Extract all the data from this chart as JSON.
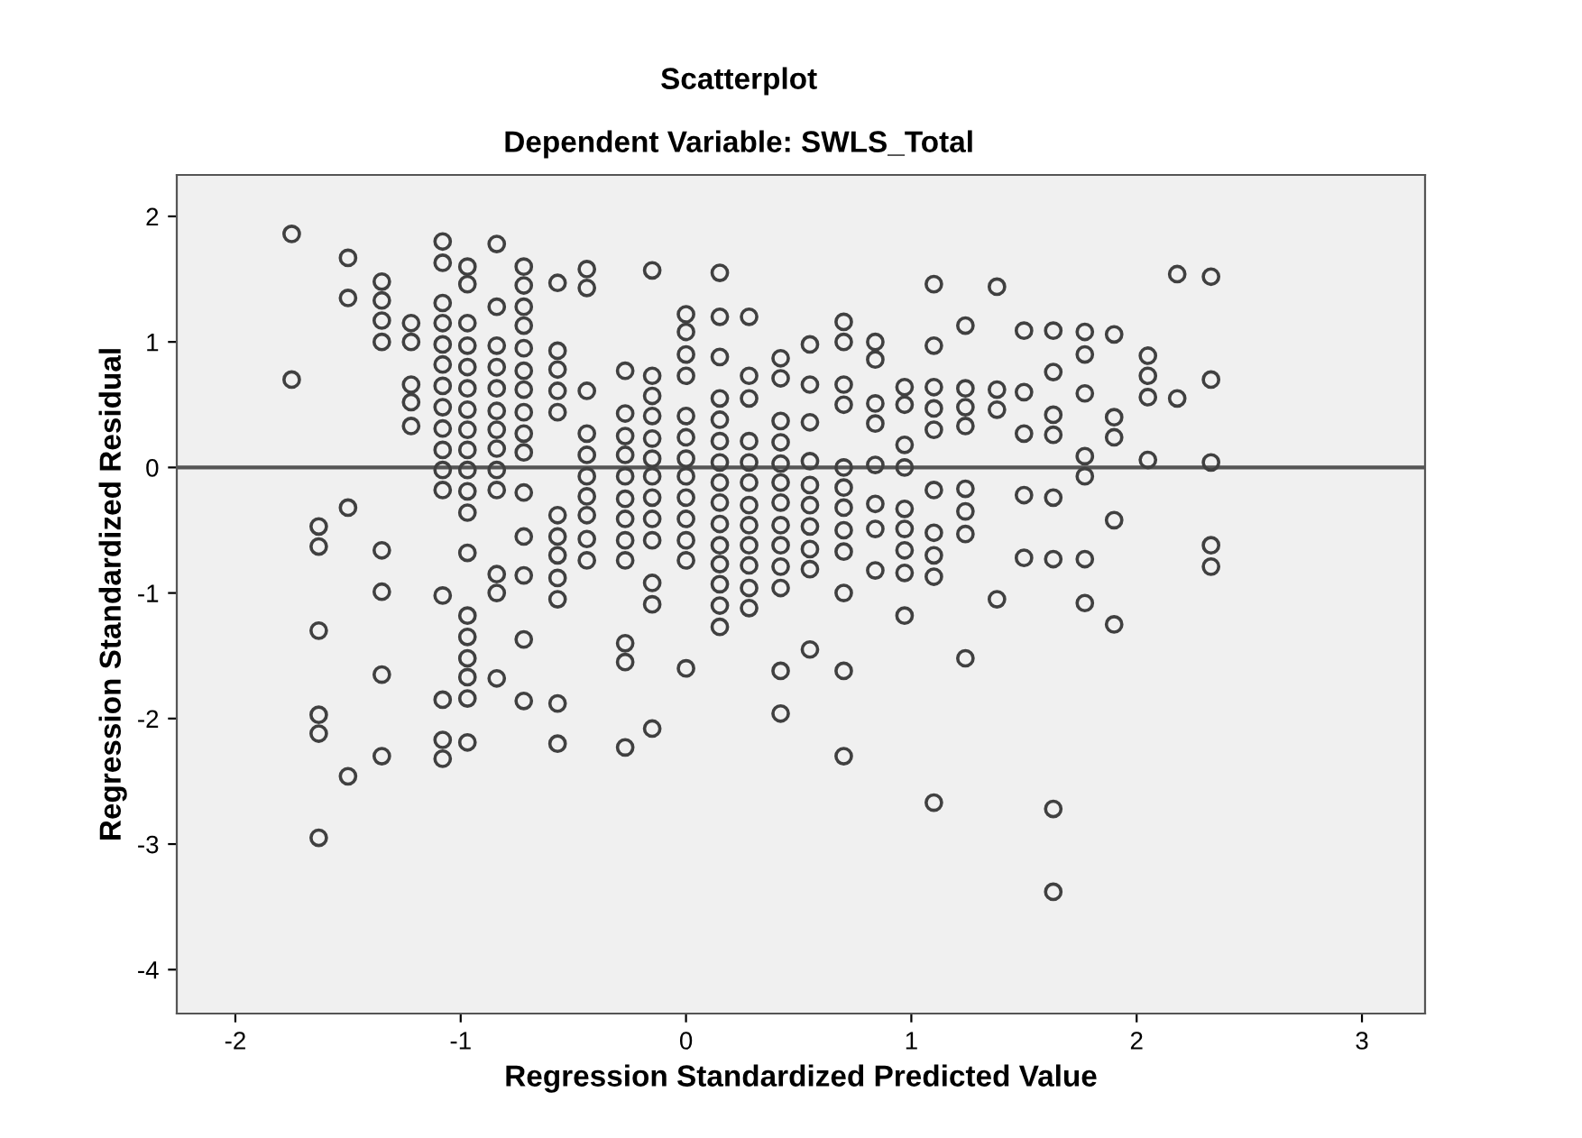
{
  "chart_data": {
    "type": "scatter",
    "title": "Scatterplot",
    "subtitle": "Dependent Variable: SWLS_Total",
    "xlabel": "Regression Standardized Predicted Value",
    "ylabel": "Regression Standardized Residual",
    "marker": "circle",
    "grid": false,
    "xlim": [
      -2.26,
      3.28
    ],
    "ylim": [
      -4.35,
      2.33
    ],
    "xticks": [
      -2,
      -1,
      0,
      1,
      2,
      3
    ],
    "yticks": [
      -4,
      -3,
      -2,
      -1,
      0,
      1,
      2
    ],
    "ref_lines": [
      {
        "axis": "y",
        "value": 0,
        "label": null,
        "color": "#555555"
      }
    ],
    "series": [
      {
        "color": "#404040",
        "x": [
          -1.75,
          -1.75,
          -1.63,
          -1.63,
          -1.63,
          -1.63,
          -1.63,
          -1.63,
          -1.5,
          -1.5,
          -1.5,
          -1.5,
          -1.35,
          -1.35,
          -1.35,
          -1.35,
          -1.35,
          -1.35,
          -1.35,
          -1.35,
          -1.22,
          -1.22,
          -1.22,
          -1.22,
          -1.22,
          -1.08,
          -1.08,
          -1.08,
          -1.08,
          -1.08,
          -1.08,
          -1.08,
          -1.08,
          -1.08,
          -1.08,
          -1.08,
          -1.08,
          -1.08,
          -1.08,
          -1.08,
          -1.08,
          -0.97,
          -0.97,
          -0.97,
          -0.97,
          -0.97,
          -0.97,
          -0.97,
          -0.97,
          -0.97,
          -0.97,
          -0.97,
          -0.97,
          -0.97,
          -0.97,
          -0.97,
          -0.97,
          -0.97,
          -0.97,
          -0.97,
          -0.84,
          -0.84,
          -0.84,
          -0.84,
          -0.84,
          -0.84,
          -0.84,
          -0.84,
          -0.84,
          -0.84,
          -0.84,
          -0.84,
          -0.84,
          -0.72,
          -0.72,
          -0.72,
          -0.72,
          -0.72,
          -0.72,
          -0.72,
          -0.72,
          -0.72,
          -0.72,
          -0.72,
          -0.72,
          -0.72,
          -0.72,
          -0.72,
          -0.57,
          -0.57,
          -0.57,
          -0.57,
          -0.57,
          -0.57,
          -0.57,
          -0.57,
          -0.57,
          -0.57,
          -0.57,
          -0.57,
          -0.44,
          -0.44,
          -0.44,
          -0.44,
          -0.44,
          -0.44,
          -0.44,
          -0.44,
          -0.44,
          -0.44,
          -0.27,
          -0.27,
          -0.27,
          -0.27,
          -0.27,
          -0.27,
          -0.27,
          -0.27,
          -0.27,
          -0.27,
          -0.27,
          -0.27,
          -0.15,
          -0.15,
          -0.15,
          -0.15,
          -0.15,
          -0.15,
          -0.15,
          -0.15,
          -0.15,
          -0.15,
          -0.15,
          -0.15,
          -0.15,
          0,
          0,
          0,
          0,
          0,
          0,
          0,
          0,
          0,
          0,
          0,
          0,
          0,
          0.15,
          0.15,
          0.15,
          0.15,
          0.15,
          0.15,
          0.15,
          0.15,
          0.15,
          0.15,
          0.15,
          0.15,
          0.15,
          0.15,
          0.15,
          0.28,
          0.28,
          0.28,
          0.28,
          0.28,
          0.28,
          0.28,
          0.28,
          0.28,
          0.28,
          0.28,
          0.28,
          0.42,
          0.42,
          0.42,
          0.42,
          0.42,
          0.42,
          0.42,
          0.42,
          0.42,
          0.42,
          0.42,
          0.42,
          0.42,
          0.55,
          0.55,
          0.55,
          0.55,
          0.55,
          0.55,
          0.55,
          0.55,
          0.55,
          0.55,
          0.7,
          0.7,
          0.7,
          0.7,
          0.7,
          0.7,
          0.7,
          0.7,
          0.7,
          0.7,
          0.7,
          0.7,
          0.84,
          0.84,
          0.84,
          0.84,
          0.84,
          0.84,
          0.84,
          0.84,
          0.97,
          0.97,
          0.97,
          0.97,
          0.97,
          0.97,
          0.97,
          0.97,
          0.97,
          1.1,
          1.1,
          1.1,
          1.1,
          1.1,
          1.1,
          1.1,
          1.1,
          1.1,
          1.1,
          1.24,
          1.24,
          1.24,
          1.24,
          1.24,
          1.24,
          1.24,
          1.24,
          1.38,
          1.38,
          1.38,
          1.38,
          1.5,
          1.5,
          1.5,
          1.5,
          1.5,
          1.63,
          1.63,
          1.63,
          1.63,
          1.63,
          1.63,
          1.63,
          1.63,
          1.77,
          1.77,
          1.77,
          1.77,
          1.77,
          1.77,
          1.77,
          1.9,
          1.9,
          1.9,
          1.9,
          1.9,
          2.05,
          2.05,
          2.05,
          2.05,
          2.18,
          2.18,
          2.33,
          2.33,
          2.33,
          2.33,
          2.33
        ],
        "values": [
          1.86,
          0.7,
          -0.47,
          -0.63,
          -1.3,
          -1.97,
          -2.12,
          -2.95,
          1.67,
          1.35,
          -0.32,
          -2.46,
          1.48,
          1.33,
          1.17,
          1.0,
          -0.66,
          -0.99,
          -1.65,
          -2.3,
          1.15,
          1.0,
          0.66,
          0.52,
          0.33,
          1.8,
          1.63,
          1.31,
          1.15,
          0.98,
          0.82,
          0.65,
          0.48,
          0.31,
          0.14,
          -0.02,
          -0.18,
          -1.02,
          -1.85,
          -2.17,
          -2.32,
          1.6,
          1.46,
          1.15,
          0.97,
          0.8,
          0.63,
          0.46,
          0.3,
          0.14,
          -0.02,
          -0.19,
          -0.36,
          -0.68,
          -1.18,
          -1.35,
          -1.52,
          -1.67,
          -1.84,
          -2.19,
          1.78,
          1.28,
          0.97,
          0.8,
          0.63,
          0.45,
          0.3,
          0.15,
          -0.02,
          -0.18,
          -0.85,
          -1.0,
          -1.68,
          1.6,
          1.45,
          1.28,
          1.13,
          0.95,
          0.77,
          0.62,
          0.44,
          0.27,
          0.12,
          -0.2,
          -0.55,
          -0.86,
          -1.37,
          -1.86,
          1.47,
          0.93,
          0.78,
          0.61,
          0.44,
          -0.38,
          -0.55,
          -0.7,
          -0.88,
          -1.05,
          -1.88,
          -2.2,
          1.58,
          1.43,
          0.61,
          0.27,
          0.1,
          -0.07,
          -0.23,
          -0.38,
          -0.57,
          -0.74,
          0.77,
          0.43,
          0.25,
          0.1,
          -0.07,
          -0.25,
          -0.41,
          -0.58,
          -0.74,
          -1.4,
          -1.55,
          -2.23,
          1.57,
          0.73,
          0.57,
          0.41,
          0.23,
          0.07,
          -0.07,
          -0.24,
          -0.41,
          -0.58,
          -0.92,
          -1.09,
          -2.08,
          1.22,
          1.08,
          0.9,
          0.73,
          0.41,
          0.24,
          0.07,
          -0.07,
          -0.24,
          -0.41,
          -0.58,
          -0.74,
          -1.6,
          1.55,
          1.2,
          0.88,
          0.55,
          0.38,
          0.21,
          0.04,
          -0.12,
          -0.28,
          -0.45,
          -0.62,
          -0.77,
          -0.93,
          -1.1,
          -1.27,
          1.2,
          0.73,
          0.55,
          0.21,
          0.04,
          -0.12,
          -0.3,
          -0.46,
          -0.62,
          -0.78,
          -0.96,
          -1.12,
          0.87,
          0.71,
          0.37,
          0.2,
          0.03,
          -0.12,
          -0.28,
          -0.46,
          -0.62,
          -0.79,
          -0.96,
          -1.62,
          -1.96,
          0.98,
          0.66,
          0.36,
          0.05,
          -0.14,
          -0.3,
          -0.47,
          -0.65,
          -0.81,
          -1.45,
          1.16,
          1.0,
          0.66,
          0.5,
          0.0,
          -0.16,
          -0.32,
          -0.5,
          -0.67,
          -1.0,
          -1.62,
          -2.3,
          1.0,
          0.86,
          0.51,
          0.35,
          0.02,
          -0.29,
          -0.49,
          -0.82,
          0.64,
          0.5,
          0.18,
          0.0,
          -0.33,
          -0.49,
          -0.66,
          -0.84,
          -1.18,
          1.46,
          0.97,
          0.64,
          0.47,
          0.3,
          -0.18,
          -0.52,
          -0.7,
          -0.87,
          -2.67,
          1.13,
          0.63,
          0.48,
          0.33,
          -0.17,
          -0.35,
          -0.53,
          -1.52,
          1.44,
          0.62,
          0.46,
          -1.05,
          1.09,
          0.6,
          0.27,
          -0.22,
          -0.72,
          1.09,
          0.76,
          0.42,
          0.26,
          -0.24,
          -0.73,
          -2.72,
          -3.38,
          1.08,
          0.9,
          0.59,
          0.09,
          -0.07,
          -0.73,
          -1.08,
          1.06,
          0.4,
          0.24,
          -0.42,
          -1.25,
          0.89,
          0.73,
          0.56,
          0.06,
          1.54,
          0.55,
          1.52,
          0.7,
          0.04,
          -0.62,
          -0.79
        ]
      }
    ]
  }
}
